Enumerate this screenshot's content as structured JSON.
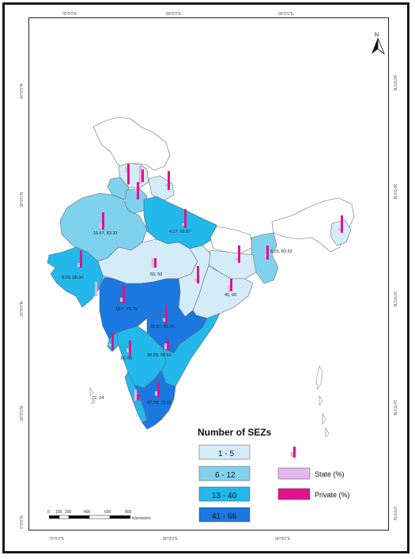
{
  "map": {
    "north": "N",
    "lon_ticks": [
      "70°0'0\"E",
      "80°0'0\"E",
      "90°0'0\"E"
    ],
    "lat_ticks": [
      "40°0'0\"N",
      "30°0'0\"N",
      "20°0'0\"N",
      "10°0'0\"N",
      "0°0'0\"N"
    ],
    "state_labels": [
      {
        "name": "punjab-haryana",
        "text": "16.67, 83.33"
      },
      {
        "name": "uttar-pradesh",
        "text": "4.17, 91.67"
      },
      {
        "name": "west-bengal",
        "text": "8.33, 83.33"
      },
      {
        "name": "gujarat",
        "text": "8.03, 85.94"
      },
      {
        "name": "madhya-pradesh",
        "text": "50, 50"
      },
      {
        "name": "odisha",
        "text": "40, 60"
      },
      {
        "name": "maharashtra",
        "text": "19.7, 79.79"
      },
      {
        "name": "andhra-pradesh",
        "text": "18.57, 81.43"
      },
      {
        "name": "goa-karnataka",
        "text": "15, 85"
      },
      {
        "name": "karnataka",
        "text": "39.39, 60.61"
      },
      {
        "name": "kerala",
        "text": "72, 24"
      },
      {
        "name": "tamil-nadu",
        "text": "27.78, 72.22"
      }
    ],
    "scale": {
      "ticks": [
        "0",
        "100",
        "200",
        "400",
        "600",
        "800"
      ],
      "unit": "Kilometers"
    }
  },
  "legend": {
    "title": "Number of SEZs",
    "classes": [
      {
        "label": "1 - 5",
        "color": "#d4ecf8"
      },
      {
        "label": "6 - 12",
        "color": "#7fd2ee"
      },
      {
        "label": "13 - 40",
        "color": "#22b8ec"
      },
      {
        "label": "41 - 66",
        "color": "#1a78e0"
      }
    ],
    "bars": [
      {
        "label": "State (%)",
        "color": "#e4b8ec"
      },
      {
        "label": "Private (%)",
        "color": "#e0138c"
      }
    ]
  }
}
